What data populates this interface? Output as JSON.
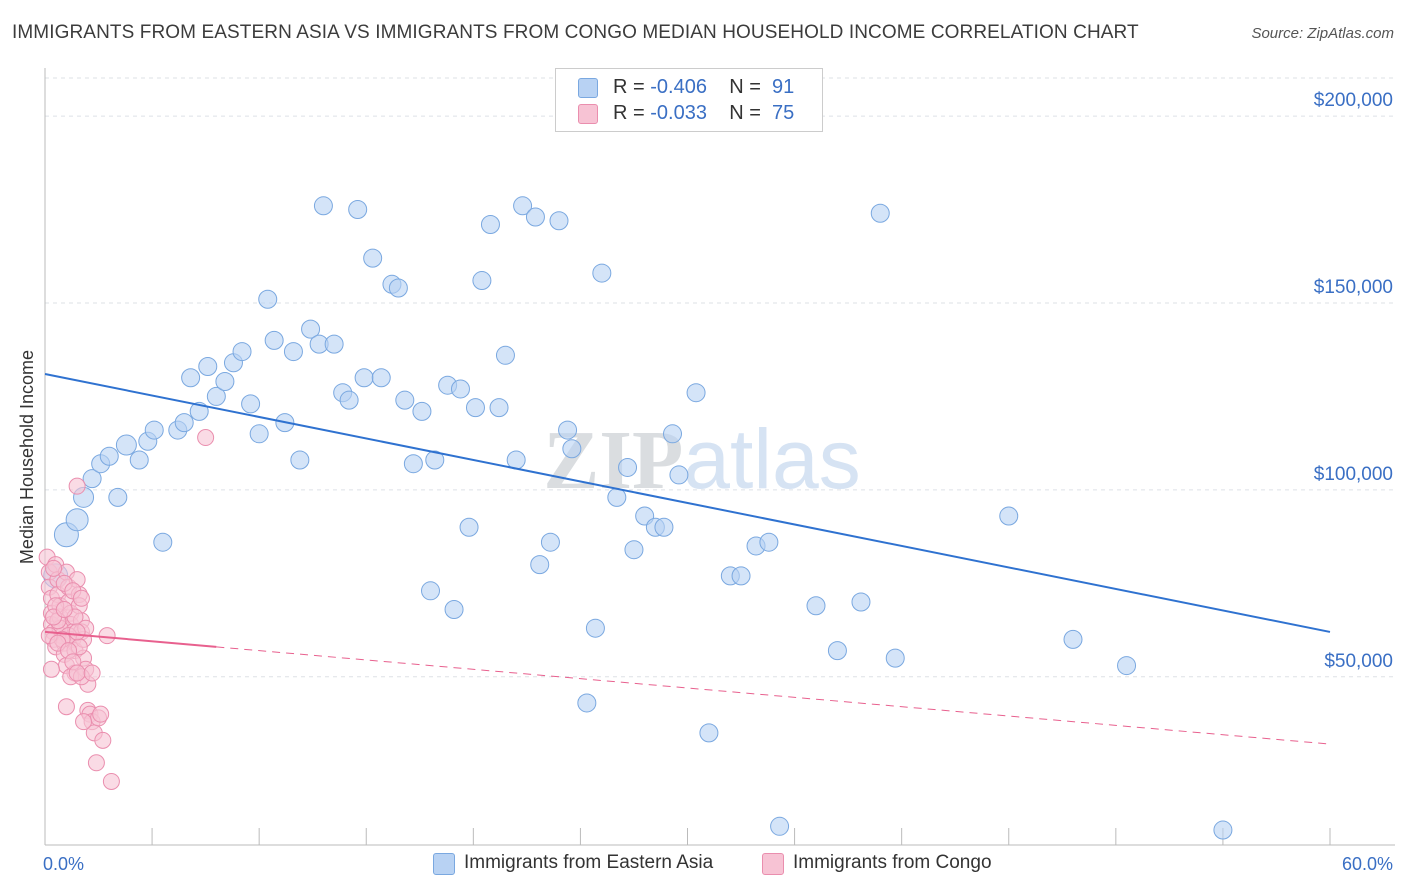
{
  "chart_data": {
    "type": "scatter",
    "title": "IMMIGRANTS FROM EASTERN ASIA VS IMMIGRANTS FROM CONGO MEDIAN HOUSEHOLD INCOME CORRELATION CHART",
    "source": "Source: ZipAtlas.com",
    "xlabel": "",
    "ylabel": "Median Household Income",
    "xlim": [
      0,
      60
    ],
    "ylim": [
      5000,
      215000
    ],
    "x_tick_labels": [
      "0.0%",
      "60.0%"
    ],
    "y_ticks": [
      50000,
      100000,
      150000,
      200000
    ],
    "y_tick_labels": [
      "$50,000",
      "$100,000",
      "$150,000",
      "$200,000"
    ],
    "watermark": "ZIPatlas",
    "legend": [
      {
        "swatch_color": "#a8c8f0",
        "r_label": "R = ",
        "r_value": "-0.406",
        "n_label": "N = ",
        "n_value": "91"
      },
      {
        "swatch_color": "#f5b8cc",
        "r_label": "R = ",
        "r_value": "-0.033",
        "n_label": "N = ",
        "n_value": "75"
      }
    ],
    "series": [
      {
        "name": "Immigrants from Eastern Asia",
        "fill": "#b8d2f3",
        "stroke": "#7aa8e0",
        "trend_color": "#2f72d0",
        "trend": {
          "x0": 0,
          "y0": 131000,
          "x1": 60,
          "y1": 62000,
          "dashed_from": null
        },
        "points": [
          [
            0.5,
            77000,
            12
          ],
          [
            1.0,
            88000,
            12
          ],
          [
            1.5,
            92000,
            11
          ],
          [
            1.8,
            98000,
            10
          ],
          [
            2.2,
            103000,
            9
          ],
          [
            2.6,
            107000,
            9
          ],
          [
            3.0,
            109000,
            9
          ],
          [
            3.4,
            98000,
            9
          ],
          [
            3.8,
            112000,
            10
          ],
          [
            4.4,
            108000,
            9
          ],
          [
            4.8,
            113000,
            9
          ],
          [
            5.1,
            116000,
            9
          ],
          [
            5.5,
            86000,
            9
          ],
          [
            6.2,
            116000,
            9
          ],
          [
            6.5,
            118000,
            9
          ],
          [
            6.8,
            130000,
            9
          ],
          [
            7.2,
            121000,
            9
          ],
          [
            7.6,
            133000,
            9
          ],
          [
            8.0,
            125000,
            9
          ],
          [
            8.4,
            129000,
            9
          ],
          [
            8.8,
            134000,
            9
          ],
          [
            9.2,
            137000,
            9
          ],
          [
            9.6,
            123000,
            9
          ],
          [
            10.0,
            115000,
            9
          ],
          [
            10.4,
            151000,
            9
          ],
          [
            10.7,
            140000,
            9
          ],
          [
            11.2,
            118000,
            9
          ],
          [
            11.6,
            137000,
            9
          ],
          [
            11.9,
            108000,
            9
          ],
          [
            12.4,
            143000,
            9
          ],
          [
            12.8,
            139000,
            9
          ],
          [
            13.0,
            176000,
            9
          ],
          [
            13.5,
            139000,
            9
          ],
          [
            13.9,
            126000,
            9
          ],
          [
            14.2,
            124000,
            9
          ],
          [
            14.6,
            175000,
            9
          ],
          [
            14.9,
            130000,
            9
          ],
          [
            15.3,
            162000,
            9
          ],
          [
            15.7,
            130000,
            9
          ],
          [
            16.2,
            155000,
            9
          ],
          [
            16.5,
            154000,
            9
          ],
          [
            16.8,
            124000,
            9
          ],
          [
            17.2,
            107000,
            9
          ],
          [
            17.6,
            121000,
            9
          ],
          [
            18.0,
            73000,
            9
          ],
          [
            18.2,
            108000,
            9
          ],
          [
            18.8,
            128000,
            9
          ],
          [
            19.1,
            68000,
            9
          ],
          [
            19.4,
            127000,
            9
          ],
          [
            19.8,
            90000,
            9
          ],
          [
            20.1,
            122000,
            9
          ],
          [
            20.4,
            156000,
            9
          ],
          [
            20.8,
            171000,
            9
          ],
          [
            21.2,
            122000,
            9
          ],
          [
            21.5,
            136000,
            9
          ],
          [
            22.0,
            108000,
            9
          ],
          [
            22.3,
            176000,
            9
          ],
          [
            22.9,
            173000,
            9
          ],
          [
            23.1,
            80000,
            9
          ],
          [
            23.6,
            86000,
            9
          ],
          [
            24.0,
            172000,
            9
          ],
          [
            24.4,
            116000,
            9
          ],
          [
            24.6,
            111000,
            9
          ],
          [
            25.3,
            43000,
            9
          ],
          [
            25.7,
            63000,
            9
          ],
          [
            26.0,
            158000,
            9
          ],
          [
            26.7,
            98000,
            9
          ],
          [
            27.2,
            106000,
            9
          ],
          [
            27.5,
            84000,
            9
          ],
          [
            28.0,
            93000,
            9
          ],
          [
            28.5,
            90000,
            9
          ],
          [
            28.9,
            90000,
            9
          ],
          [
            29.3,
            115000,
            9
          ],
          [
            29.6,
            104000,
            9
          ],
          [
            30.4,
            126000,
            9
          ],
          [
            31.0,
            35000,
            9
          ],
          [
            32.0,
            77000,
            9
          ],
          [
            32.5,
            77000,
            9
          ],
          [
            33.2,
            85000,
            9
          ],
          [
            33.8,
            86000,
            9
          ],
          [
            34.3,
            10000,
            9
          ],
          [
            36.0,
            69000,
            9
          ],
          [
            37.0,
            57000,
            9
          ],
          [
            38.1,
            70000,
            9
          ],
          [
            39.0,
            174000,
            9
          ],
          [
            39.7,
            55000,
            9
          ],
          [
            45.0,
            93000,
            9
          ],
          [
            48.0,
            60000,
            9
          ],
          [
            50.5,
            53000,
            9
          ],
          [
            55.0,
            9000,
            9
          ]
        ]
      },
      {
        "name": "Immigrants from Congo",
        "fill": "#f7c3d4",
        "stroke": "#ea8eae",
        "trend_color": "#e8608e",
        "trend": {
          "x0": 0,
          "y0": 62000,
          "x1": 60,
          "y1": 32000,
          "dashed_from": 8
        },
        "points": [
          [
            0.1,
            82000,
            8
          ],
          [
            0.2,
            78000,
            8
          ],
          [
            0.2,
            74000,
            8
          ],
          [
            0.3,
            71000,
            8
          ],
          [
            0.3,
            67000,
            8
          ],
          [
            0.3,
            64000,
            8
          ],
          [
            0.4,
            62000,
            8
          ],
          [
            0.4,
            60000,
            8
          ],
          [
            0.5,
            58000,
            8
          ],
          [
            0.5,
            80000,
            8
          ],
          [
            0.6,
            76000,
            8
          ],
          [
            0.6,
            72000,
            8
          ],
          [
            0.7,
            69000,
            8
          ],
          [
            0.7,
            66000,
            8
          ],
          [
            0.8,
            63000,
            8
          ],
          [
            0.8,
            61000,
            8
          ],
          [
            0.9,
            59000,
            8
          ],
          [
            0.9,
            56000,
            8
          ],
          [
            1.0,
            53000,
            8
          ],
          [
            1.0,
            78000,
            8
          ],
          [
            1.1,
            74000,
            8
          ],
          [
            1.1,
            70000,
            8
          ],
          [
            1.2,
            67000,
            8
          ],
          [
            1.2,
            64000,
            8
          ],
          [
            1.3,
            62000,
            8
          ],
          [
            1.3,
            60000,
            8
          ],
          [
            1.4,
            57000,
            8
          ],
          [
            1.4,
            51000,
            8
          ],
          [
            1.5,
            101000,
            8
          ],
          [
            1.5,
            76000,
            8
          ],
          [
            1.6,
            72000,
            8
          ],
          [
            1.6,
            69000,
            8
          ],
          [
            1.7,
            65000,
            8
          ],
          [
            1.7,
            62000,
            8
          ],
          [
            1.8,
            60000,
            8
          ],
          [
            1.8,
            55000,
            8
          ],
          [
            1.9,
            52000,
            8
          ],
          [
            2.0,
            48000,
            8
          ],
          [
            2.0,
            41000,
            8
          ],
          [
            2.1,
            40000,
            8
          ],
          [
            2.2,
            38000,
            8
          ],
          [
            2.3,
            35000,
            8
          ],
          [
            2.4,
            27000,
            8
          ],
          [
            2.5,
            39000,
            8
          ],
          [
            2.7,
            33000,
            8
          ],
          [
            2.9,
            61000,
            8
          ],
          [
            3.1,
            22000,
            8
          ],
          [
            7.5,
            114000,
            8
          ],
          [
            0.3,
            52000,
            8
          ],
          [
            0.5,
            69000,
            8
          ],
          [
            0.7,
            63000,
            8
          ],
          [
            0.9,
            75000,
            8
          ],
          [
            1.1,
            61000,
            8
          ],
          [
            1.2,
            50000,
            8
          ],
          [
            1.3,
            73000,
            8
          ],
          [
            1.4,
            66000,
            8
          ],
          [
            1.6,
            58000,
            8
          ],
          [
            1.7,
            50000,
            8
          ],
          [
            1.9,
            63000,
            8
          ],
          [
            0.4,
            79000,
            8
          ],
          [
            0.6,
            65000,
            8
          ],
          [
            0.8,
            60000,
            8
          ],
          [
            1.0,
            42000,
            8
          ],
          [
            1.5,
            62000,
            8
          ],
          [
            1.8,
            38000,
            8
          ],
          [
            0.2,
            61000,
            8
          ],
          [
            0.4,
            66000,
            8
          ],
          [
            0.6,
            59000,
            8
          ],
          [
            0.9,
            68000,
            8
          ],
          [
            1.1,
            57000,
            8
          ],
          [
            1.3,
            54000,
            8
          ],
          [
            1.5,
            51000,
            8
          ],
          [
            1.7,
            71000,
            8
          ],
          [
            2.2,
            51000,
            8
          ],
          [
            2.6,
            40000,
            8
          ]
        ]
      }
    ]
  }
}
